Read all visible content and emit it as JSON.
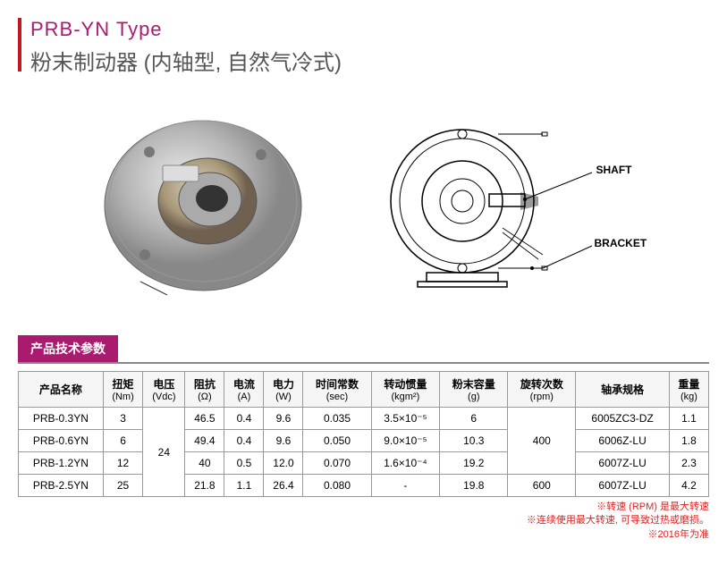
{
  "header": {
    "title_main": "PRB-YN Type",
    "title_sub": "粉末制动器 (内轴型, 自然气冷式)"
  },
  "diagram": {
    "label_shaft": "SHAFT",
    "label_bracket": "BRACKET"
  },
  "section": {
    "tab_label": "产品技术参数"
  },
  "table": {
    "headers": [
      {
        "main": "产品名称",
        "sub": ""
      },
      {
        "main": "扭矩",
        "sub": "(Nm)"
      },
      {
        "main": "电压",
        "sub": "(Vdc)"
      },
      {
        "main": "阻抗",
        "sub": "(Ω)"
      },
      {
        "main": "电流",
        "sub": "(A)"
      },
      {
        "main": "电力",
        "sub": "(W)"
      },
      {
        "main": "时间常数",
        "sub": "(sec)"
      },
      {
        "main": "转动惯量",
        "sub": "(kgm²)"
      },
      {
        "main": "粉末容量",
        "sub": "(g)"
      },
      {
        "main": "旋转次数",
        "sub": "(rpm)"
      },
      {
        "main": "轴承规格",
        "sub": ""
      },
      {
        "main": "重量",
        "sub": "(kg)"
      }
    ],
    "rows": [
      [
        "PRB-0.3YN",
        "3",
        "24",
        "46.5",
        "0.4",
        "9.6",
        "0.035",
        "3.5×10⁻⁵",
        "6",
        "400",
        "6005ZC3-DZ",
        "1.1"
      ],
      [
        "PRB-0.6YN",
        "6",
        "24",
        "49.4",
        "0.4",
        "9.6",
        "0.050",
        "9.0×10⁻⁵",
        "10.3",
        "400",
        "6006Z-LU",
        "1.8"
      ],
      [
        "PRB-1.2YN",
        "12",
        "24",
        "40",
        "0.5",
        "12.0",
        "0.070",
        "1.6×10⁻⁴",
        "19.2",
        "400",
        "6007Z-LU",
        "2.3"
      ],
      [
        "PRB-2.5YN",
        "25",
        "24",
        "21.8",
        "1.1",
        "26.4",
        "0.080",
        "-",
        "19.8",
        "600",
        "6007Z-LU",
        "4.2"
      ]
    ]
  },
  "footnotes": [
    "※转速 (RPM) 是最大转速",
    "※连续使用最大转速, 可导致过热或磨损。",
    "※2016年为准"
  ]
}
